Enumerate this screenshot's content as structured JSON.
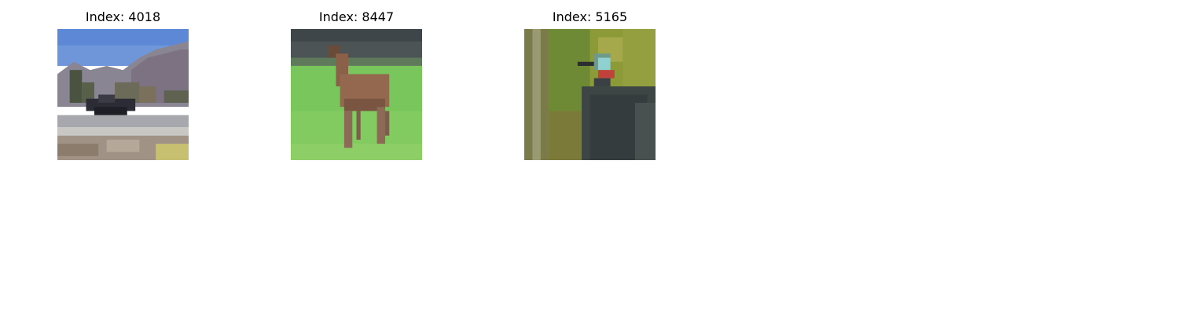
{
  "panels": [
    {
      "title": "Index: 4018",
      "image": "airplane-on-runway"
    },
    {
      "title": "Index: 8447",
      "image": "deer-in-field"
    },
    {
      "title": "Index: 5165",
      "image": "guinea-fowl-bird"
    }
  ]
}
